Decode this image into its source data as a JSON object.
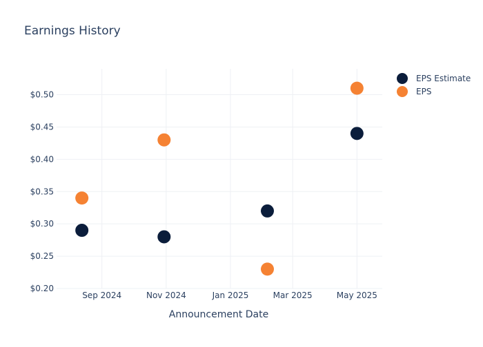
{
  "chart_data": {
    "type": "scatter",
    "title": "Earnings History",
    "xlabel": "Announcement Date",
    "ylabel": "",
    "x_axis": {
      "type": "date",
      "range": [
        "2024-07-20",
        "2025-05-25"
      ],
      "tick_labels": [
        {
          "date": "2024-09-01",
          "label": "Sep 2024"
        },
        {
          "date": "2024-11-01",
          "label": "Nov 2024"
        },
        {
          "date": "2025-01-01",
          "label": "Jan 2025"
        },
        {
          "date": "2025-03-01",
          "label": "Mar 2025"
        },
        {
          "date": "2025-05-01",
          "label": "May 2025"
        }
      ]
    },
    "y_axis": {
      "range": [
        0.2,
        0.54
      ],
      "ticks": [
        0.2,
        0.25,
        0.3,
        0.35,
        0.4,
        0.45,
        0.5
      ],
      "tick_labels": [
        "$0.20",
        "$0.25",
        "$0.30",
        "$0.35",
        "$0.40",
        "$0.45",
        "$0.50"
      ]
    },
    "grid": true,
    "legend_position": "top-right",
    "series": [
      {
        "name": "EPS Estimate",
        "color": "#0b1d3b",
        "points": [
          {
            "x": "2024-08-13",
            "y": 0.29
          },
          {
            "x": "2024-10-30",
            "y": 0.28
          },
          {
            "x": "2025-02-05",
            "y": 0.32
          },
          {
            "x": "2025-05-01",
            "y": 0.44
          }
        ]
      },
      {
        "name": "EPS",
        "color": "#f58233",
        "points": [
          {
            "x": "2024-08-13",
            "y": 0.34
          },
          {
            "x": "2024-10-30",
            "y": 0.43
          },
          {
            "x": "2025-02-05",
            "y": 0.23
          },
          {
            "x": "2025-05-01",
            "y": 0.51
          }
        ]
      }
    ]
  }
}
